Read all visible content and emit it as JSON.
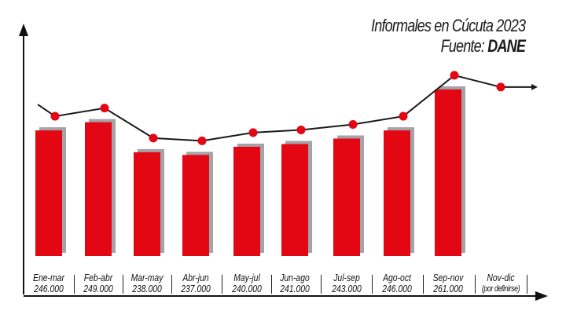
{
  "chart_data": {
    "type": "bar",
    "title": "Informales en Cúcuta 2023",
    "subtitle_prefix": "Fuente: ",
    "subtitle_source": "DANE",
    "categories": [
      "Ene-mar",
      "Feb-abr",
      "Mar-may",
      "Abr-jun",
      "May-jul",
      "Jun-ago",
      "Jul-sep",
      "Ago-oct",
      "Sep-nov",
      "Nov-dic"
    ],
    "value_labels": [
      "246.000",
      "249.000",
      "238.000",
      "237.000",
      "240.000",
      "241.000",
      "243.000",
      "246.000",
      "261.000",
      "(por definirse)"
    ],
    "values": [
      246000,
      249000,
      238000,
      237000,
      240000,
      241000,
      243000,
      246000,
      261000,
      null
    ],
    "overlay": "line with markers following bar tops, arrow continuing right",
    "colors": {
      "bar": "#e30613",
      "bar_shadow": "#a3a3a8",
      "line": "#1a1a1a",
      "marker": "#e30613"
    },
    "grid": false,
    "legend": "none"
  }
}
